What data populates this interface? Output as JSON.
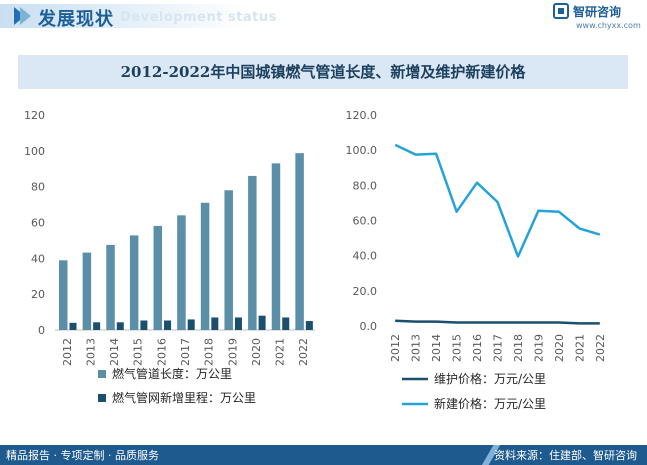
{
  "header": {
    "title": "发展现状",
    "subtitle": "Development status",
    "logo_name": "智研咨询",
    "logo_url": "www.chyxx.com"
  },
  "chart_title": "2012-2022年中国城镇燃气管道长度、新增及维护新建价格",
  "footer": {
    "left": "精品报告 · 专项定制 · 品质服务",
    "right": "资料来源：住建部、智研咨询"
  },
  "colors": {
    "bar_length": "#5b8fa8",
    "bar_new": "#1b4f6e",
    "line_maintain": "#1b4f6e",
    "line_new": "#25a3d9"
  },
  "chart_data": [
    {
      "type": "bar",
      "categories": [
        "2012",
        "2013",
        "2014",
        "2015",
        "2016",
        "2017",
        "2018",
        "2019",
        "2020",
        "2021",
        "2022"
      ],
      "ylim": [
        0,
        120
      ],
      "yticks": [
        "0",
        "20",
        "40",
        "60",
        "80",
        "100",
        "120"
      ],
      "series": [
        {
          "name": "燃气管道长度：万公里",
          "values": [
            38.9,
            43.2,
            47.5,
            52.8,
            58.1,
            64.0,
            71.0,
            78.0,
            86.0,
            93.0,
            98.7
          ]
        },
        {
          "name": "燃气管网新增里程：万公里",
          "values": [
            4.0,
            4.3,
            4.3,
            5.3,
            5.3,
            5.9,
            7.0,
            7.0,
            8.0,
            7.0,
            5.0
          ]
        }
      ],
      "legend": "bottom"
    },
    {
      "type": "line",
      "categories": [
        "2012",
        "2013",
        "2014",
        "2015",
        "2016",
        "2017",
        "2018",
        "2019",
        "2020",
        "2021",
        "2022"
      ],
      "ylim": [
        0,
        120
      ],
      "yticks": [
        "0.0",
        "20.0",
        "40.0",
        "60.0",
        "80.0",
        "100.0",
        "120.0"
      ],
      "series": [
        {
          "name": "维护价格：万元/公里",
          "values": [
            3.0,
            2.5,
            2.5,
            2.0,
            2.0,
            2.0,
            2.0,
            2.0,
            2.0,
            1.5,
            1.5
          ]
        },
        {
          "name": "新建价格：万元/公里",
          "values": [
            103.0,
            97.5,
            98.0,
            65.0,
            81.5,
            70.5,
            39.5,
            65.5,
            65.0,
            55.5,
            52.0
          ]
        }
      ],
      "legend": "bottom"
    }
  ]
}
